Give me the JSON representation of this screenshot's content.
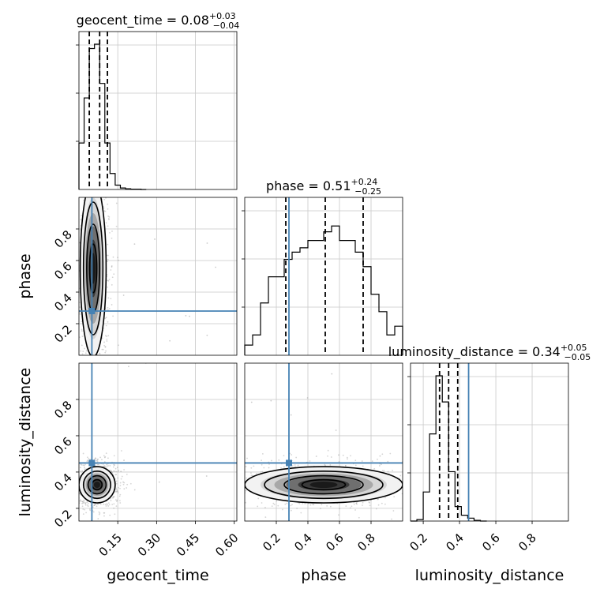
{
  "figure": {
    "type": "corner-plot"
  },
  "chart_data": {
    "type": "corner",
    "parameters": [
      "geocent_time",
      "phase",
      "luminosity_distance"
    ],
    "truths": {
      "geocent_time": 0.05,
      "phase": 0.28,
      "luminosity_distance": 0.45
    },
    "truth_color": "#4682b4",
    "hist_color": "#000000",
    "grid": true,
    "diagonal": [
      {
        "param": "geocent_time",
        "title_prefix": "geocent_time = 0.08",
        "title_sup": "+0.03",
        "title_sub": "−0.04",
        "xlim": [
          0.0,
          0.61
        ],
        "xticks": [
          "0.15",
          "0.30",
          "0.45",
          "0.60"
        ],
        "xtick_values": [
          0.15,
          0.3,
          0.45,
          0.6
        ],
        "quantiles": [
          0.04,
          0.08,
          0.11
        ],
        "bin_edges": [
          0.0,
          0.02,
          0.04,
          0.06,
          0.08,
          0.1,
          0.12,
          0.14,
          0.16,
          0.18,
          0.2,
          0.22,
          0.24,
          0.26
        ],
        "counts": [
          0.32,
          0.63,
          0.97,
          1.0,
          0.73,
          0.32,
          0.11,
          0.03,
          0.01,
          0.005,
          0.002,
          0.002,
          0.0
        ]
      },
      {
        "param": "phase",
        "title_prefix": "phase = 0.51",
        "title_sup": "+0.24",
        "title_sub": "−0.25",
        "xlim": [
          0.0,
          1.0
        ],
        "xticks": [
          "0.2",
          "0.4",
          "0.6",
          "0.8"
        ],
        "xtick_values": [
          0.2,
          0.4,
          0.6,
          0.8
        ],
        "quantiles": [
          0.26,
          0.51,
          0.75
        ],
        "bin_edges": [
          0.0,
          0.05,
          0.1,
          0.15,
          0.2,
          0.25,
          0.3,
          0.35,
          0.4,
          0.45,
          0.5,
          0.55,
          0.6,
          0.65,
          0.7,
          0.75,
          0.8,
          0.85,
          0.9,
          0.95,
          1.0
        ],
        "counts": [
          0.07,
          0.14,
          0.36,
          0.54,
          0.54,
          0.66,
          0.71,
          0.74,
          0.79,
          0.79,
          0.85,
          0.89,
          0.79,
          0.79,
          0.71,
          0.61,
          0.42,
          0.3,
          0.14,
          0.2
        ]
      },
      {
        "param": "luminosity_distance",
        "title_prefix": "luminosity_distance = 0.34",
        "title_sup": "+0.05",
        "title_sub": "−0.05",
        "xlim": [
          0.13,
          1.0
        ],
        "xticks": [
          "0.2",
          "0.4",
          "0.6",
          "0.8"
        ],
        "xtick_values": [
          0.2,
          0.4,
          0.6,
          0.8
        ],
        "quantiles": [
          0.29,
          0.34,
          0.39
        ],
        "bin_edges": [
          0.13,
          0.165,
          0.2,
          0.235,
          0.27,
          0.305,
          0.34,
          0.375,
          0.41,
          0.445,
          0.48,
          0.515,
          0.55
        ],
        "counts": [
          0.0,
          0.01,
          0.2,
          0.6,
          1.0,
          0.82,
          0.34,
          0.1,
          0.04,
          0.02,
          0.005,
          0.0
        ]
      }
    ],
    "pairs": [
      {
        "x": "geocent_time",
        "y": "phase",
        "xlim": [
          0.0,
          0.61
        ],
        "ylim": [
          0.0,
          1.0
        ],
        "yticks": [
          "0.2",
          "0.4",
          "0.6",
          "0.8"
        ],
        "ytick_values": [
          0.2,
          0.4,
          0.6,
          0.8
        ],
        "density_center": [
          0.055,
          0.55
        ],
        "density_spread": [
          0.025,
          0.28
        ]
      },
      {
        "x": "geocent_time",
        "y": "luminosity_distance",
        "xlim": [
          0.0,
          0.61
        ],
        "ylim": [
          0.13,
          1.0
        ],
        "yticks": [
          "0.2",
          "0.4",
          "0.6",
          "0.8"
        ],
        "ytick_values": [
          0.2,
          0.4,
          0.6,
          0.8
        ],
        "density_center": [
          0.07,
          0.33
        ],
        "density_spread": [
          0.035,
          0.05
        ]
      },
      {
        "x": "phase",
        "y": "luminosity_distance",
        "xlim": [
          0.0,
          1.0
        ],
        "ylim": [
          0.13,
          1.0
        ],
        "density_center": [
          0.5,
          0.33
        ],
        "density_spread": [
          0.25,
          0.05
        ]
      }
    ],
    "axis_labels": {
      "geocent_time": "geocent_time",
      "phase": "phase",
      "luminosity_distance": "luminosity_distance"
    }
  }
}
